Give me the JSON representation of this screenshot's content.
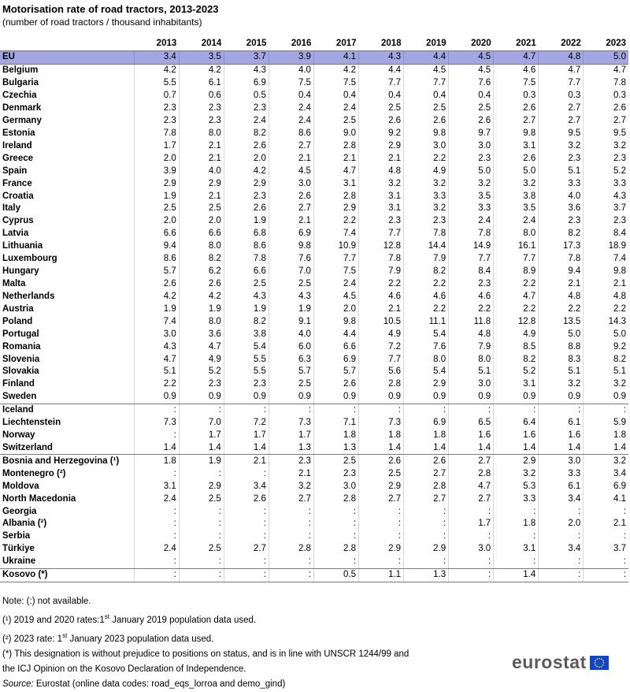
{
  "title": "Motorisation rate of road tractors, 2013-2023",
  "subtitle": "(number of road tractors / thousand inhabitants)",
  "years": [
    "2013",
    "2014",
    "2015",
    "2016",
    "2017",
    "2018",
    "2019",
    "2020",
    "2021",
    "2022",
    "2023"
  ],
  "groups": [
    {
      "rows": [
        {
          "country": "EU",
          "values": [
            "3.4",
            "3.5",
            "3.7",
            "3.9",
            "4.1",
            "4.3",
            "4.4",
            "4.5",
            "4.7",
            "4.8",
            "5.0"
          ]
        }
      ]
    },
    {
      "rows": [
        {
          "country": "Belgium",
          "values": [
            "4.2",
            "4.2",
            "4.3",
            "4.0",
            "4.2",
            "4.4",
            "4.5",
            "4.5",
            "4.6",
            "4.7",
            "4.7"
          ]
        },
        {
          "country": "Bulgaria",
          "values": [
            "5.5",
            "6.1",
            "6.9",
            "7.5",
            "7.5",
            "7.7",
            "7.7",
            "7.6",
            "7.5",
            "7.7",
            "7.8"
          ]
        },
        {
          "country": "Czechia",
          "values": [
            "0.7",
            "0.6",
            "0.5",
            "0.4",
            "0.4",
            "0.4",
            "0.4",
            "0.4",
            "0.3",
            "0.3",
            "0.3"
          ]
        },
        {
          "country": "Denmark",
          "values": [
            "2.3",
            "2.3",
            "2.3",
            "2.4",
            "2.4",
            "2.5",
            "2.5",
            "2.5",
            "2.6",
            "2.7",
            "2.6"
          ]
        },
        {
          "country": "Germany",
          "values": [
            "2.3",
            "2.3",
            "2.4",
            "2.4",
            "2.5",
            "2.6",
            "2.6",
            "2.6",
            "2.7",
            "2.7",
            "2.7"
          ]
        },
        {
          "country": "Estonia",
          "values": [
            "7.8",
            "8.0",
            "8.2",
            "8.6",
            "9.0",
            "9.2",
            "9.8",
            "9.7",
            "9.8",
            "9.5",
            "9.5"
          ]
        },
        {
          "country": "Ireland",
          "values": [
            "1.7",
            "2.1",
            "2.6",
            "2.7",
            "2.8",
            "2.9",
            "3.0",
            "3.0",
            "3.1",
            "3.2",
            "3.2"
          ]
        },
        {
          "country": "Greece",
          "values": [
            "2.0",
            "2.1",
            "2.0",
            "2.1",
            "2.1",
            "2.1",
            "2.2",
            "2.3",
            "2.6",
            "2.3",
            "2.3"
          ]
        },
        {
          "country": "Spain",
          "values": [
            "3.9",
            "4.0",
            "4.2",
            "4.5",
            "4.7",
            "4.8",
            "4.9",
            "5.0",
            "5.0",
            "5.1",
            "5.2"
          ]
        },
        {
          "country": "France",
          "values": [
            "2.9",
            "2.9",
            "2.9",
            "3.0",
            "3.1",
            "3.2",
            "3.2",
            "3.2",
            "3.2",
            "3.3",
            "3.3"
          ]
        },
        {
          "country": "Croatia",
          "values": [
            "1.9",
            "2.1",
            "2.3",
            "2.6",
            "2.8",
            "3.1",
            "3.3",
            "3.5",
            "3.8",
            "4.0",
            "4.3"
          ]
        },
        {
          "country": "Italy",
          "values": [
            "2.5",
            "2.5",
            "2.6",
            "2.7",
            "2.9",
            "3.1",
            "3.2",
            "3.3",
            "3.5",
            "3.6",
            "3.7"
          ]
        },
        {
          "country": "Cyprus",
          "values": [
            "2.0",
            "2.0",
            "1.9",
            "2.1",
            "2.2",
            "2.3",
            "2.3",
            "2.4",
            "2.4",
            "2.3",
            "2.3"
          ]
        },
        {
          "country": "Latvia",
          "values": [
            "6.6",
            "6.6",
            "6.8",
            "6.9",
            "7.4",
            "7.7",
            "7.8",
            "7.8",
            "8.0",
            "8.2",
            "8.4"
          ]
        },
        {
          "country": "Lithuania",
          "values": [
            "9.4",
            "8.0",
            "8.6",
            "9.8",
            "10.9",
            "12.8",
            "14.4",
            "14.9",
            "16.1",
            "17.3",
            "18.9"
          ]
        },
        {
          "country": "Luxembourg",
          "values": [
            "8.6",
            "8.2",
            "7.8",
            "7.6",
            "7.7",
            "7.8",
            "7.9",
            "7.7",
            "7.7",
            "7.8",
            "7.4"
          ]
        },
        {
          "country": "Hungary",
          "values": [
            "5.7",
            "6.2",
            "6.6",
            "7.0",
            "7.5",
            "7.9",
            "8.2",
            "8.4",
            "8.9",
            "9.4",
            "9.8"
          ]
        },
        {
          "country": "Malta",
          "values": [
            "2.6",
            "2.6",
            "2.5",
            "2.5",
            "2.4",
            "2.2",
            "2.2",
            "2.3",
            "2.2",
            "2.1",
            "2.1"
          ]
        },
        {
          "country": "Netherlands",
          "values": [
            "4.2",
            "4.2",
            "4.3",
            "4.3",
            "4.5",
            "4.6",
            "4.6",
            "4.6",
            "4.7",
            "4.8",
            "4.8"
          ]
        },
        {
          "country": "Austria",
          "values": [
            "1.9",
            "1.9",
            "1.9",
            "1.9",
            "2.0",
            "2.1",
            "2.2",
            "2.2",
            "2.2",
            "2.2",
            "2.2"
          ]
        },
        {
          "country": "Poland",
          "values": [
            "7.4",
            "8.0",
            "8.2",
            "9.1",
            "9.8",
            "10.5",
            "11.1",
            "11.8",
            "12.8",
            "13.5",
            "14.3"
          ]
        },
        {
          "country": "Portugal",
          "values": [
            "3.0",
            "3.6",
            "3.8",
            "4.0",
            "4.4",
            "4.9",
            "5.4",
            "4.8",
            "4.9",
            "5.0",
            "5.0"
          ]
        },
        {
          "country": "Romania",
          "values": [
            "4.3",
            "4.7",
            "5.4",
            "6.0",
            "6.6",
            "7.2",
            "7.6",
            "7.9",
            "8.5",
            "8.8",
            "9.2"
          ]
        },
        {
          "country": "Slovenia",
          "values": [
            "4.7",
            "4.9",
            "5.5",
            "6.3",
            "6.9",
            "7.7",
            "8.0",
            "8.0",
            "8.2",
            "8.3",
            "8.2"
          ]
        },
        {
          "country": "Slovakia",
          "values": [
            "5.1",
            "5.2",
            "5.5",
            "5.7",
            "5.7",
            "5.6",
            "5.4",
            "5.1",
            "5.2",
            "5.1",
            "5.1"
          ]
        },
        {
          "country": "Finland",
          "values": [
            "2.2",
            "2.3",
            "2.3",
            "2.5",
            "2.6",
            "2.8",
            "2.9",
            "3.0",
            "3.1",
            "3.2",
            "3.2"
          ]
        },
        {
          "country": "Sweden",
          "values": [
            "0.9",
            "0.9",
            "0.9",
            "0.9",
            "0.9",
            "0.9",
            "0.9",
            "0.9",
            "0.9",
            "0.9",
            "0.9"
          ]
        }
      ]
    },
    {
      "rows": [
        {
          "country": "Iceland",
          "values": [
            ":",
            ":",
            ":",
            ":",
            ":",
            ":",
            ":",
            ":",
            ":",
            ":",
            ":"
          ]
        },
        {
          "country": "Liechtenstein",
          "values": [
            "7.3",
            "7.0",
            "7.2",
            "7.3",
            "7.1",
            "7.3",
            "6.9",
            "6.5",
            "6.4",
            "6.1",
            "5.9"
          ]
        },
        {
          "country": "Norway",
          "values": [
            ":",
            "1.7",
            "1.7",
            "1.7",
            "1.8",
            "1.8",
            "1.8",
            "1.6",
            "1.6",
            "1.6",
            "1.8"
          ]
        },
        {
          "country": "Switzerland",
          "values": [
            "1.4",
            "1.4",
            "1.4",
            "1.3",
            "1.3",
            "1.4",
            "1.4",
            "1.4",
            "1.4",
            "1.4",
            "1.4"
          ]
        }
      ]
    },
    {
      "rows": [
        {
          "country": "Bosnia and Herzegovina (¹)",
          "values": [
            "1.8",
            "1.9",
            "2.1",
            "2.3",
            "2.5",
            "2.6",
            "2.6",
            "2.7",
            "2.9",
            "3.0",
            "3.2"
          ]
        },
        {
          "country": "Montenegro (²)",
          "values": [
            ":",
            ":",
            ":",
            "2.1",
            "2.3",
            "2.5",
            "2.7",
            "2.8",
            "3.2",
            "3.3",
            "3.4"
          ]
        },
        {
          "country": "Moldova",
          "values": [
            "3.1",
            "2.9",
            "3.4",
            "3.2",
            "3.0",
            "2.9",
            "2.8",
            "4.7",
            "5.3",
            "6.1",
            "6.9"
          ]
        },
        {
          "country": "North Macedonia",
          "values": [
            "2.4",
            "2.5",
            "2.6",
            "2.7",
            "2.8",
            "2.7",
            "2.7",
            "2.7",
            "3.3",
            "3.4",
            "4.1"
          ]
        },
        {
          "country": "Georgia",
          "values": [
            ":",
            ":",
            ":",
            ":",
            ":",
            ":",
            ":",
            ":",
            ":",
            ":",
            ":"
          ]
        },
        {
          "country": "Albania (²)",
          "values": [
            ":",
            ":",
            ":",
            ":",
            ":",
            ":",
            ":",
            "1.7",
            "1.8",
            "2.0",
            "2.1"
          ]
        },
        {
          "country": "Serbia",
          "values": [
            ":",
            ":",
            ":",
            ":",
            ":",
            ":",
            ":",
            ":",
            ":",
            ":",
            ":"
          ]
        },
        {
          "country": "Türkiye",
          "values": [
            "2.4",
            "2.5",
            "2.7",
            "2.8",
            "2.8",
            "2.9",
            "2.9",
            "3.0",
            "3.1",
            "3.4",
            "3.7"
          ]
        },
        {
          "country": "Ukraine",
          "values": [
            ":",
            ":",
            ":",
            ":",
            ":",
            ":",
            ":",
            ":",
            ":",
            ":",
            ":"
          ]
        }
      ]
    },
    {
      "rows": [
        {
          "country": "Kosovo (*)",
          "values": [
            ":",
            ":",
            ":",
            ":",
            "0.5",
            "1.1",
            "1.3",
            ":",
            "1.4",
            ":",
            ":"
          ]
        }
      ]
    }
  ],
  "notes": {
    "not_available": "Note: (:) not available.",
    "note1_a": "(¹) 2019 and 2020 rates:1",
    "note1_sup": "st",
    "note1_b": " January 2019 population data used.",
    "note2_a": "(²) 2023 rate: 1",
    "note2_sup": "st",
    "note2_b": " January 2023 population data used.",
    "note3_line1": "(*) This designation is without prejudice to positions on status, and is in line with UNSCR 1244/99 and",
    "note3_line2": "the ICJ Opinion on the Kosovo Declaration of Independence.",
    "source_label": "Source:",
    "source_text": " Eurostat (online data codes: road_eqs_lorroa and demo_gind)"
  },
  "logo": {
    "text": "eurostat",
    "flag_color": "#0e47cb",
    "star_color": "#ffde00"
  }
}
